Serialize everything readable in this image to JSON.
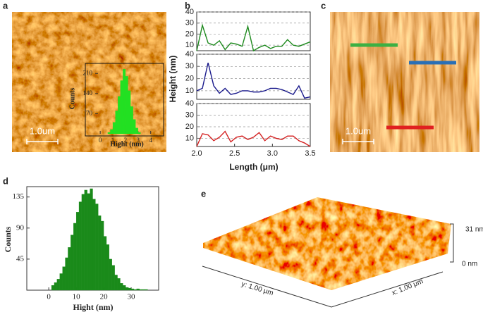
{
  "panel_labels": [
    "a",
    "b",
    "c",
    "d",
    "e"
  ],
  "panel_a": {
    "scale_bar": "1.0um"
  },
  "panel_c": {
    "scale_bar": "1.0um"
  },
  "panel_e": {
    "z_max": "31 nm",
    "z_min": "0 nm",
    "y_axis": "y: 1.00 μm",
    "x_axis": "x: 1.00 μm"
  },
  "chart_data": [
    {
      "type": "histogram",
      "color": "#22e022",
      "x_label": "Hight (nm)",
      "y_label": "Counts",
      "bins": [
        0.6,
        0.8,
        1.0,
        1.2,
        1.4,
        1.6,
        1.8,
        2.0,
        2.2,
        2.4,
        2.6,
        2.8,
        3.0,
        3.2
      ],
      "values": [
        5,
        15,
        40,
        80,
        130,
        185,
        225,
        200,
        150,
        95,
        50,
        20,
        5
      ],
      "xlim": [
        -0.4,
        4.8
      ],
      "xticks": [
        0,
        1,
        2,
        3,
        4
      ],
      "ylim": [
        0,
        240
      ],
      "yticks": [
        70,
        140,
        210
      ],
      "grid": false
    },
    {
      "type": "line",
      "grid": true,
      "x": [
        2.0,
        2.075,
        2.15,
        2.225,
        2.3,
        2.375,
        2.45,
        2.525,
        2.6,
        2.675,
        2.75,
        2.825,
        2.9,
        2.975,
        3.05,
        3.125,
        3.2,
        3.275,
        3.35,
        3.425,
        3.5
      ],
      "series": [
        {
          "color": "#1e8a1e",
          "values": [
            5,
            28,
            12,
            10,
            14,
            6,
            12,
            11,
            9,
            27,
            5,
            8,
            10,
            7,
            9,
            9,
            15,
            10,
            9,
            11,
            13
          ]
        }
      ],
      "xlim": [
        2.0,
        3.5
      ],
      "ylim": [
        5,
        40
      ],
      "yticks": [
        10,
        20,
        30,
        40
      ]
    },
    {
      "type": "line",
      "grid": true,
      "y_label": "Height (nm)",
      "x": [
        2.0,
        2.075,
        2.15,
        2.225,
        2.3,
        2.375,
        2.45,
        2.525,
        2.6,
        2.675,
        2.75,
        2.825,
        2.9,
        2.975,
        3.05,
        3.125,
        3.2,
        3.275,
        3.35,
        3.425,
        3.5
      ],
      "series": [
        {
          "color": "#1a1a8c",
          "values": [
            10,
            12,
            33,
            14,
            8,
            12,
            7,
            8,
            10,
            10,
            9,
            9,
            10,
            12,
            12,
            11,
            9,
            7,
            14,
            4,
            5
          ]
        }
      ],
      "xlim": [
        2.0,
        3.5
      ],
      "ylim": [
        3,
        40
      ],
      "yticks": [
        10,
        20,
        30,
        40
      ]
    },
    {
      "type": "line",
      "grid": true,
      "x_label": "Length (μm)",
      "x": [
        2.0,
        2.075,
        2.15,
        2.225,
        2.3,
        2.375,
        2.45,
        2.525,
        2.6,
        2.675,
        2.75,
        2.825,
        2.9,
        2.975,
        3.05,
        3.125,
        3.2,
        3.275,
        3.35,
        3.425,
        3.5
      ],
      "series": [
        {
          "color": "#d42020",
          "values": [
            3,
            14,
            13,
            8,
            11,
            16,
            7,
            11,
            12,
            9,
            11,
            15,
            8,
            12,
            10,
            9,
            12,
            12,
            8,
            6,
            3
          ]
        }
      ],
      "xlim": [
        2.0,
        3.5
      ],
      "xticks": [
        {
          "value": 2.0,
          "label": "2.0"
        },
        2.5,
        {
          "value": 3.0,
          "label": "3.0"
        },
        3.5
      ],
      "ylim": [
        3,
        40
      ],
      "yticks": [
        10,
        20,
        30,
        40
      ]
    },
    {
      "type": "histogram",
      "color": "#1a8a1a",
      "x_label": "Hight (nm)",
      "y_label": "Counts",
      "bins": [
        1,
        2,
        3,
        4,
        5,
        6,
        7,
        8,
        9,
        10,
        11,
        12,
        13,
        14,
        15,
        16,
        17,
        18,
        19,
        20,
        21,
        22,
        23,
        24,
        25,
        26,
        27,
        28,
        29,
        30,
        31,
        32,
        33,
        34,
        35,
        36
      ],
      "values": [
        7,
        11,
        16,
        24,
        34,
        47,
        62,
        80,
        97,
        113,
        128,
        139,
        145,
        140,
        147,
        132,
        125,
        108,
        100,
        78,
        66,
        45,
        36,
        22,
        17,
        10,
        7,
        4,
        3,
        2,
        1,
        2,
        1,
        1,
        1
      ],
      "xlim": [
        -8,
        40
      ],
      "xticks": [
        0,
        10,
        20,
        30
      ],
      "ylim": [
        0,
        150
      ],
      "yticks": [
        45,
        90,
        135
      ],
      "grid": false
    }
  ]
}
